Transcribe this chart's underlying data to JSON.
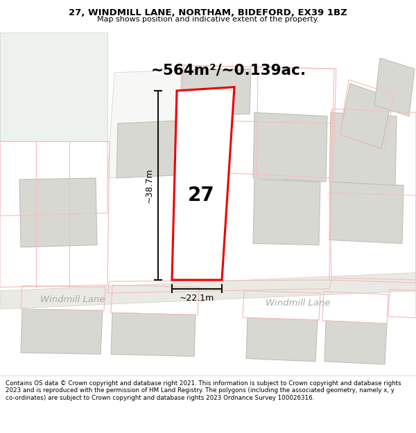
{
  "title_line1": "27, WINDMILL LANE, NORTHAM, BIDEFORD, EX39 1BZ",
  "title_line2": "Map shows position and indicative extent of the property.",
  "area_text": "~564m²/~0.139ac.",
  "property_number": "27",
  "dim_height": "~38.7m",
  "dim_width": "~22.1m",
  "street_name": "Windmill Lane",
  "street_name2": "Windmill Lane",
  "footer_text": "Contains OS data © Crown copyright and database right 2021. This information is subject to Crown copyright and database rights 2023 and is reproduced with the permission of HM Land Registry. The polygons (including the associated geometry, namely x, y co-ordinates) are subject to Crown copyright and database rights 2023 Ordnance Survey 100026316.",
  "bg_color": "#f7f7f5",
  "green_bg": "#eef2ee",
  "road_fill": "#eaeae4",
  "road_edge": "#d0d0c8",
  "building_fill": "#d8d8d2",
  "building_edge": "#c0c0b8",
  "red_outline": "#ee0000",
  "red_light": "#f0a0a0",
  "red_lighter": "#f5c0c0",
  "white_fill": "#ffffff",
  "road_label_color": "#aaaaaa",
  "dim_line_color": "#111111"
}
